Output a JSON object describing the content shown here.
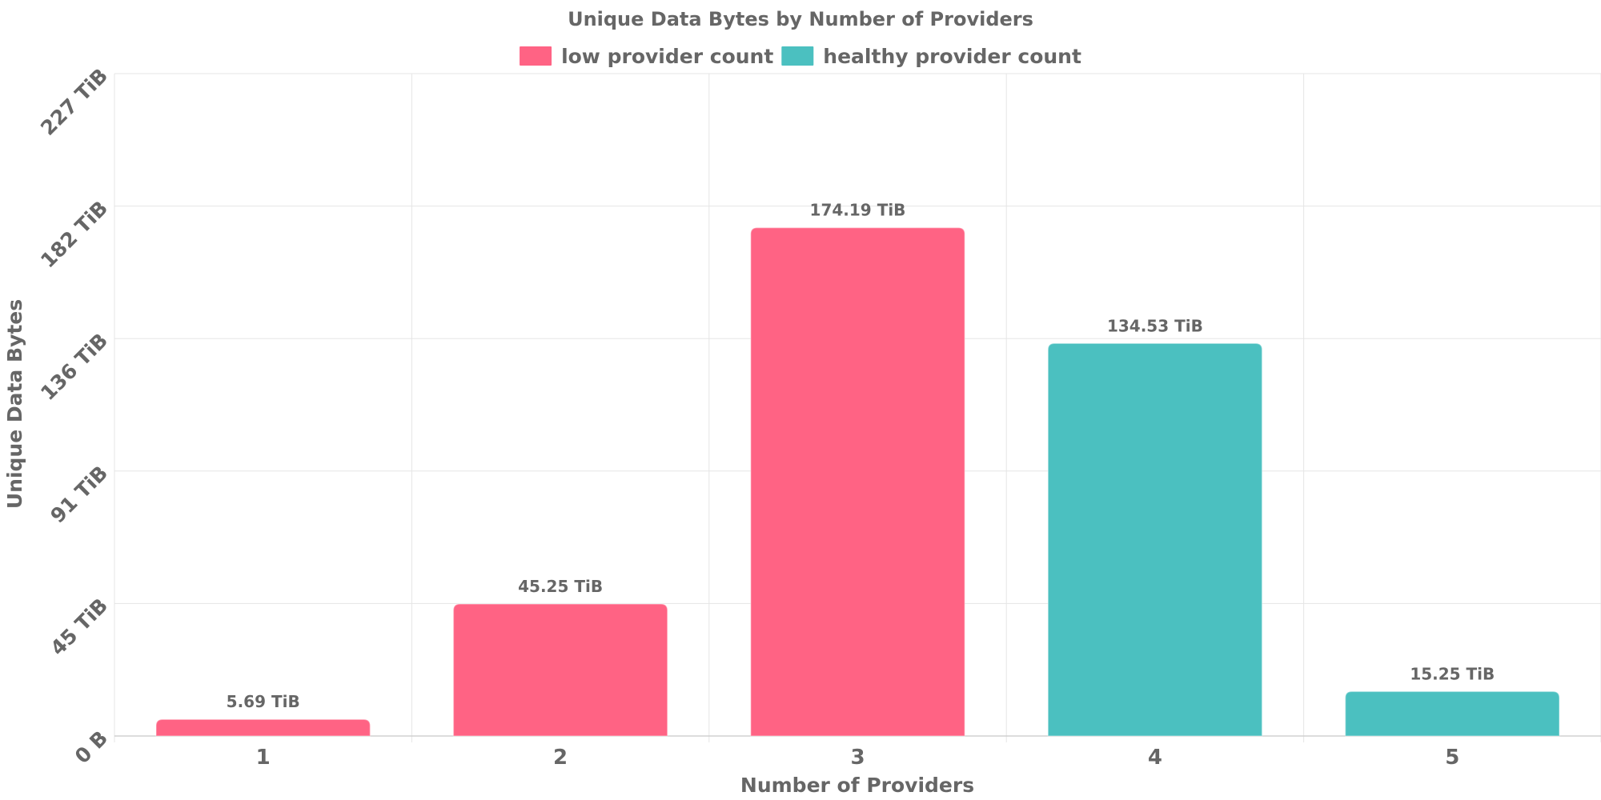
{
  "chart_data": {
    "type": "bar",
    "title": "Unique Data Bytes by Number of Providers",
    "xlabel": "Number of Providers",
    "ylabel": "Unique Data Bytes",
    "categories": [
      "1",
      "2",
      "3",
      "4",
      "5"
    ],
    "values": [
      5.69,
      45.25,
      174.19,
      134.53,
      15.25
    ],
    "value_unit": "TiB",
    "data_labels": [
      "5.69 TiB",
      "45.25 TiB",
      "174.19 TiB",
      "134.53 TiB",
      "15.25 TiB"
    ],
    "bar_series": [
      "low provider count",
      "low provider count",
      "low provider count",
      "healthy provider count",
      "healthy provider count"
    ],
    "legend": [
      {
        "name": "low provider count",
        "color": "#ff6384"
      },
      {
        "name": "healthy provider count",
        "color": "#4bc0c0"
      }
    ],
    "legend_position": "top-center",
    "yticks": [
      {
        "value": 0,
        "label": "0 B"
      },
      {
        "value": 45.4,
        "label": "45 TiB"
      },
      {
        "value": 90.8,
        "label": "91 TiB"
      },
      {
        "value": 136.2,
        "label": "136 TiB"
      },
      {
        "value": 181.6,
        "label": "182 TiB"
      },
      {
        "value": 227,
        "label": "227 TiB"
      }
    ],
    "ylim": [
      0,
      227
    ],
    "grid": true
  }
}
